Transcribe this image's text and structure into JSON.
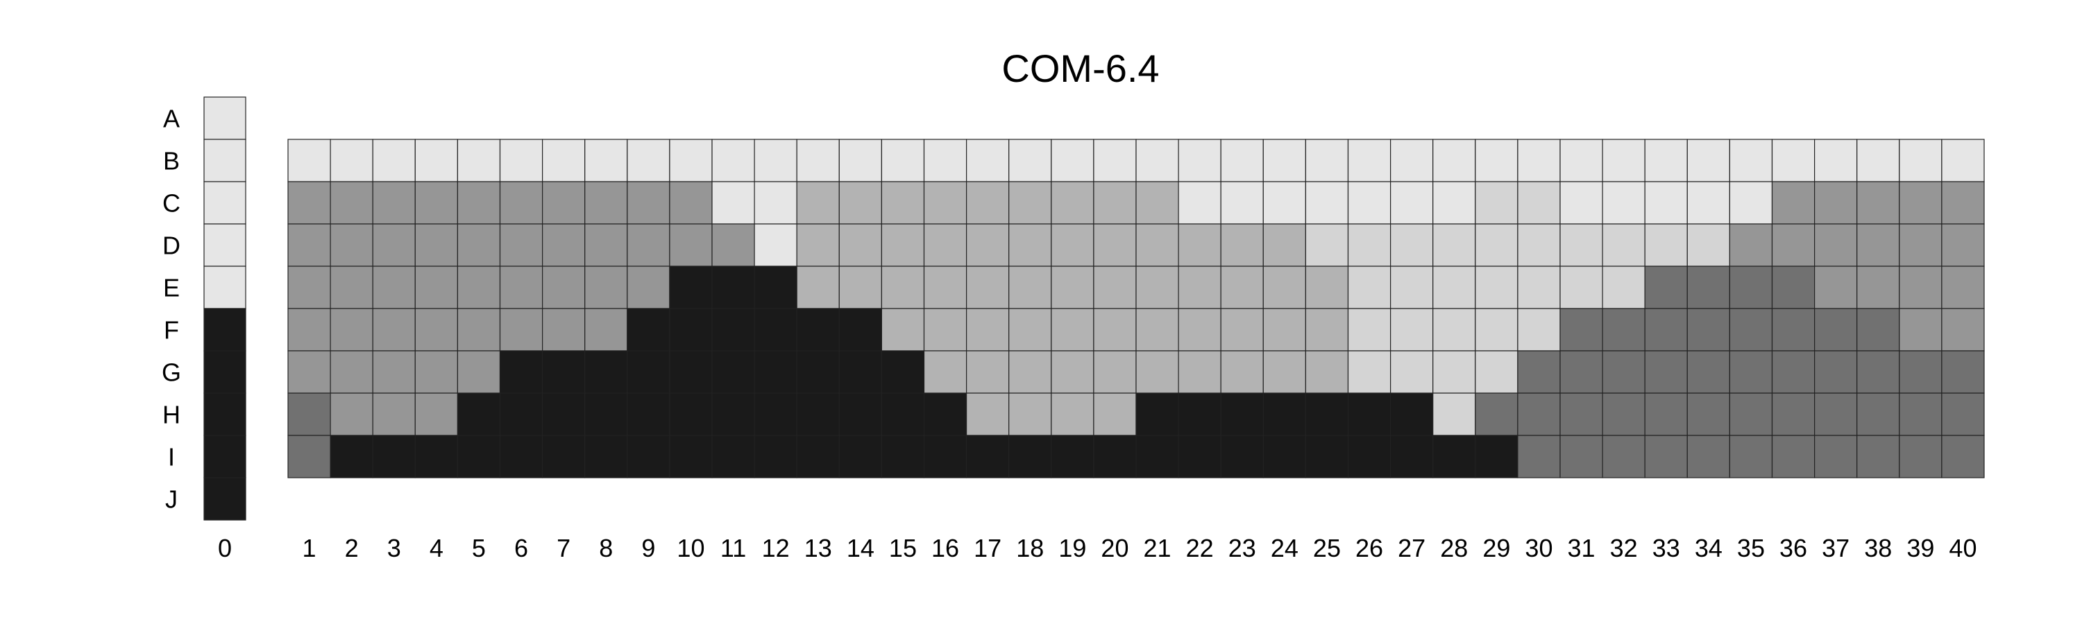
{
  "chart_data": {
    "type": "heatmap",
    "title": "COM-6.4",
    "rows": [
      "A",
      "B",
      "C",
      "D",
      "E",
      "F",
      "G",
      "H",
      "I",
      "J"
    ],
    "reference_column": {
      "label": "0",
      "levels": [
        1,
        1,
        1,
        1,
        1,
        5,
        5,
        5,
        5,
        5
      ]
    },
    "columns": [
      "1",
      "2",
      "3",
      "4",
      "5",
      "6",
      "7",
      "8",
      "9",
      "10",
      "11",
      "12",
      "13",
      "14",
      "15",
      "16",
      "17",
      "18",
      "19",
      "20",
      "21",
      "22",
      "23",
      "24",
      "25",
      "26",
      "27",
      "28",
      "29",
      "30",
      "31",
      "32",
      "33",
      "34",
      "35",
      "36",
      "37",
      "38",
      "39",
      "40"
    ],
    "grid_rows": [
      "B",
      "C",
      "D",
      "E",
      "F",
      "G",
      "H",
      "I"
    ],
    "matrix": [
      [
        1,
        1,
        1,
        1,
        1,
        1,
        1,
        1,
        1,
        1,
        1,
        1,
        1,
        1,
        1,
        1,
        1,
        1,
        1,
        1,
        1,
        1,
        1,
        1,
        1,
        1,
        1,
        1,
        1,
        1,
        1,
        1,
        1,
        1,
        1,
        1,
        1,
        1,
        1,
        1
      ],
      [
        3,
        3,
        3,
        3,
        3,
        3,
        3,
        3,
        3,
        3,
        1,
        1,
        2,
        2,
        2,
        2,
        2,
        2,
        2,
        2,
        2,
        1,
        1,
        1,
        1,
        1,
        1,
        1,
        6,
        6,
        1,
        1,
        1,
        1,
        1,
        3,
        3,
        3,
        3,
        3
      ],
      [
        3,
        3,
        3,
        3,
        3,
        3,
        3,
        3,
        3,
        3,
        3,
        1,
        2,
        2,
        2,
        2,
        2,
        2,
        2,
        2,
        2,
        2,
        2,
        2,
        6,
        6,
        6,
        6,
        6,
        6,
        6,
        6,
        6,
        6,
        3,
        3,
        3,
        3,
        3,
        3
      ],
      [
        3,
        3,
        3,
        3,
        3,
        3,
        3,
        3,
        3,
        5,
        5,
        5,
        2,
        2,
        2,
        2,
        2,
        2,
        2,
        2,
        2,
        2,
        2,
        2,
        2,
        6,
        6,
        6,
        6,
        6,
        6,
        6,
        4,
        4,
        4,
        4,
        3,
        3,
        3,
        3
      ],
      [
        3,
        3,
        3,
        3,
        3,
        3,
        3,
        3,
        5,
        5,
        5,
        5,
        5,
        5,
        2,
        2,
        2,
        2,
        2,
        2,
        2,
        2,
        2,
        2,
        2,
        6,
        6,
        6,
        6,
        6,
        4,
        4,
        4,
        4,
        4,
        4,
        4,
        4,
        3,
        3
      ],
      [
        3,
        3,
        3,
        3,
        3,
        5,
        5,
        5,
        5,
        5,
        5,
        5,
        5,
        5,
        5,
        2,
        2,
        2,
        2,
        2,
        2,
        2,
        2,
        2,
        2,
        6,
        6,
        6,
        6,
        4,
        4,
        4,
        4,
        4,
        4,
        4,
        4,
        4,
        4,
        4
      ],
      [
        4,
        3,
        3,
        3,
        5,
        5,
        5,
        5,
        5,
        5,
        5,
        5,
        5,
        5,
        5,
        5,
        2,
        2,
        2,
        2,
        5,
        5,
        5,
        5,
        5,
        5,
        5,
        6,
        4,
        4,
        4,
        4,
        4,
        4,
        4,
        4,
        4,
        4,
        4,
        4
      ],
      [
        4,
        5,
        5,
        5,
        5,
        5,
        5,
        5,
        5,
        5,
        5,
        5,
        5,
        5,
        5,
        5,
        5,
        5,
        5,
        5,
        5,
        5,
        5,
        5,
        5,
        5,
        5,
        5,
        5,
        4,
        4,
        4,
        4,
        4,
        4,
        4,
        4,
        4,
        4,
        4
      ]
    ],
    "level_colors": {
      "1": "#e6e6e6",
      "2": "#b3b3b3",
      "3": "#969696",
      "4": "#717171",
      "5": "#1a1a1a",
      "6": "#d4d4d4"
    }
  }
}
